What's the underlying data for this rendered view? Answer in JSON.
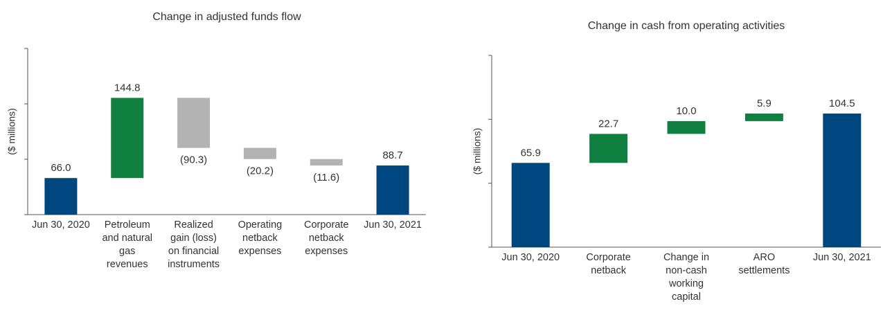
{
  "chart_data": [
    {
      "type": "waterfall",
      "title": "Change in adjusted funds flow",
      "y_label": "($ millions)",
      "categories": [
        "Jun 30, 2020",
        "Petroleum and natural gas revenues",
        "Realized gain (loss) on financial instruments",
        "Operating netback expenses",
        "Corporate netback expenses",
        "Jun 30, 2021"
      ],
      "values": [
        66.0,
        144.8,
        -90.3,
        -20.2,
        -11.6,
        88.7
      ],
      "value_labels": [
        "66.0",
        "144.8",
        "(90.3)",
        "(20.2)",
        "(11.6)",
        "88.7"
      ],
      "measure": [
        "total",
        "relative",
        "relative",
        "relative",
        "relative",
        "total"
      ],
      "colors": {
        "total": "#00467f",
        "increase": "#108040",
        "decrease": "#b3b3b3"
      },
      "ylim": [
        0,
        300
      ],
      "yticks": [
        0,
        100,
        200,
        300
      ]
    },
    {
      "type": "waterfall",
      "title": "Change in cash from operating activities",
      "y_label": "($ millions)",
      "categories": [
        "Jun 30, 2020",
        "Corporate netback",
        "Change in non-cash working capital",
        "ARO settlements",
        "Jun 30, 2021"
      ],
      "values": [
        65.9,
        22.7,
        10.0,
        5.9,
        104.5
      ],
      "value_labels": [
        "65.9",
        "22.7",
        "10.0",
        "5.9",
        "104.5"
      ],
      "measure": [
        "total",
        "relative",
        "relative",
        "relative",
        "total"
      ],
      "colors": {
        "total": "#00467f",
        "increase": "#108040",
        "decrease": "#b3b3b3"
      },
      "ylim": [
        0,
        150
      ],
      "yticks": [
        0,
        50,
        100,
        150
      ]
    }
  ]
}
